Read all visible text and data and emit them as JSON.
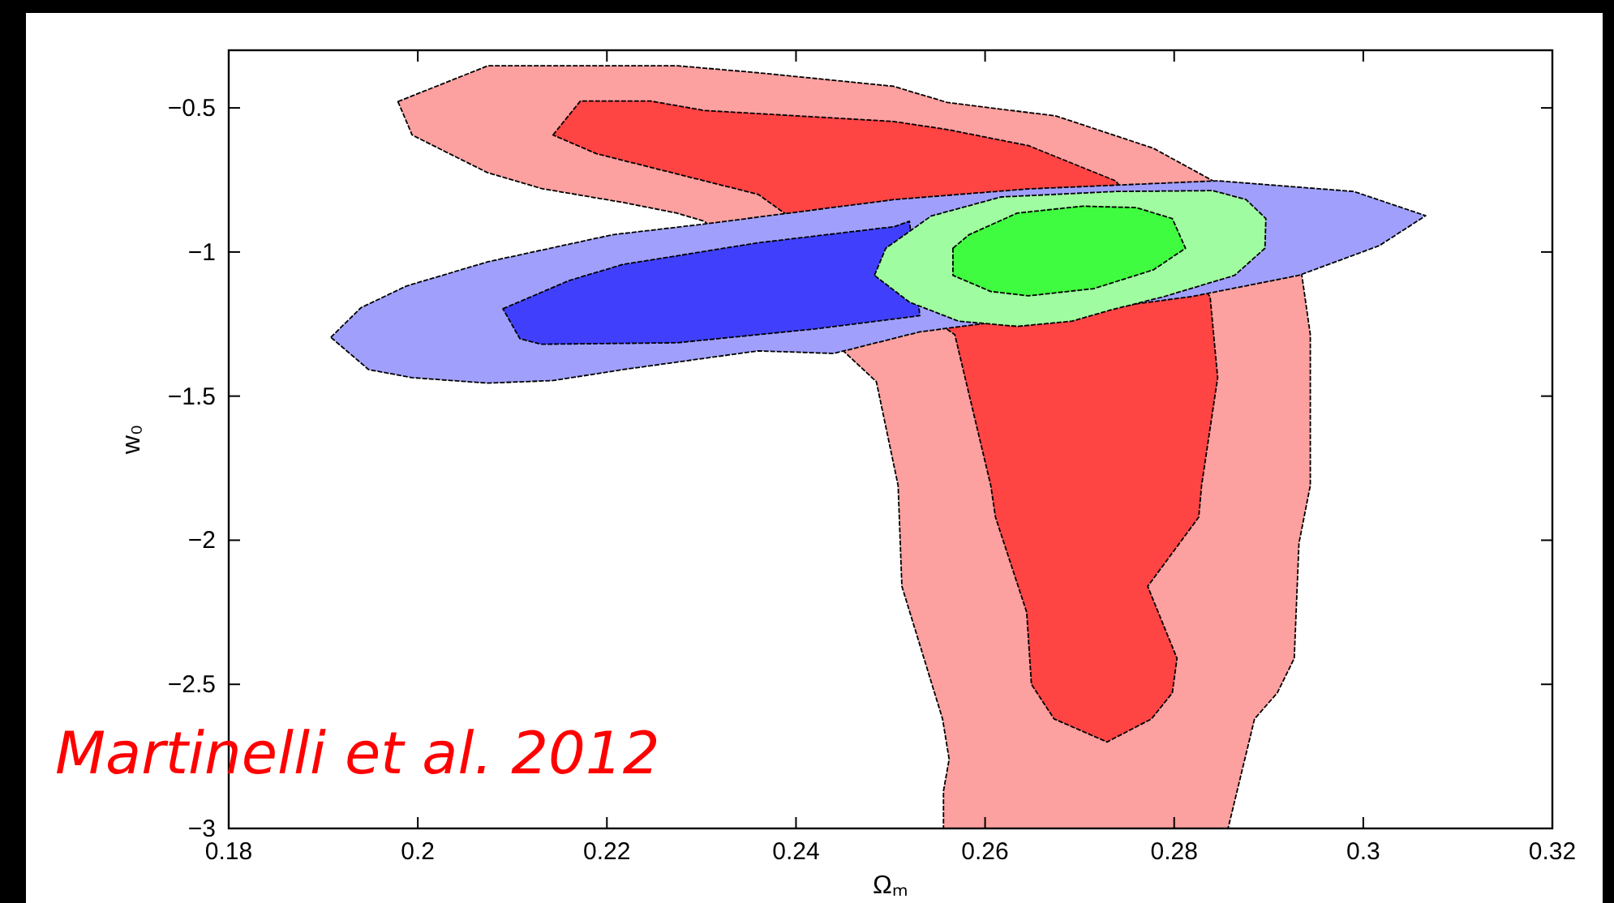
{
  "chart_data": {
    "type": "area",
    "xlabel": "Ωₘ",
    "ylabel": "w₀",
    "xlim": [
      0.18,
      0.32
    ],
    "ylim": [
      -3,
      -0.3
    ],
    "xticks": [
      0.18,
      0.2,
      0.22,
      0.24,
      0.26,
      0.28,
      0.3,
      0.32
    ],
    "yticks": [
      -3,
      -2.5,
      -2,
      -1.5,
      -1,
      -0.5
    ],
    "grid": false,
    "annotations": [
      "Martinelli et al. 2012"
    ],
    "series": [
      {
        "color": "#fca0a0",
        "x": [
          0.1979,
          0.2074,
          0.2275,
          0.236,
          0.2503,
          0.256,
          0.2675,
          0.2778,
          0.2841,
          0.2935,
          0.2944,
          0.2944,
          0.2932,
          0.2927,
          0.2909,
          0.2885,
          0.2857,
          0.2556,
          0.2556,
          0.2562,
          0.2555,
          0.2512,
          0.2508,
          0.2485,
          0.2303,
          0.2274,
          0.2217,
          0.2131,
          0.2074,
          0.2028,
          0.1994
        ],
        "values": [
          -0.478,
          -0.354,
          -0.354,
          -0.378,
          -0.425,
          -0.481,
          -0.528,
          -0.64,
          -0.753,
          -1.08,
          -1.287,
          -1.81,
          -2.01,
          -2.41,
          -2.53,
          -2.62,
          -3,
          -3,
          -2.87,
          -2.76,
          -2.62,
          -2.16,
          -1.81,
          -1.45,
          -0.893,
          -0.865,
          -0.828,
          -0.78,
          -0.725,
          -0.65,
          -0.594
        ]
      },
      {
        "color": "#ff4444",
        "x": [
          0.2143,
          0.2172,
          0.2246,
          0.2303,
          0.2503,
          0.256,
          0.2646,
          0.2738,
          0.2838,
          0.2846,
          0.2829,
          0.2826,
          0.2772,
          0.2803,
          0.2798,
          0.2776,
          0.2729,
          0.2673,
          0.2649,
          0.2644,
          0.2611,
          0.2606,
          0.2568,
          0.236,
          0.2303,
          0.2189
        ],
        "values": [
          -0.594,
          -0.476,
          -0.476,
          -0.509,
          -0.547,
          -0.575,
          -0.631,
          -0.753,
          -1.155,
          -1.436,
          -1.81,
          -1.92,
          -2.16,
          -2.41,
          -2.53,
          -2.62,
          -2.7,
          -2.62,
          -2.5,
          -2.25,
          -1.92,
          -1.81,
          -1.287,
          -0.8,
          -0.753,
          -0.659
        ]
      },
      {
        "color": "#a0a0fc",
        "x": [
          0.1908,
          0.194,
          0.1988,
          0.2074,
          0.2206,
          0.2303,
          0.2504,
          0.2646,
          0.2846,
          0.299,
          0.3066,
          0.3017,
          0.2932,
          0.2818,
          0.2531,
          0.244,
          0.236,
          0.2217,
          0.2143,
          0.2074,
          0.1994,
          0.1948
        ],
        "values": [
          -1.296,
          -1.193,
          -1.118,
          -1.034,
          -0.94,
          -0.903,
          -0.818,
          -0.781,
          -0.753,
          -0.79,
          -0.874,
          -0.978,
          -1.081,
          -1.155,
          -1.277,
          -1.352,
          -1.343,
          -1.408,
          -1.446,
          -1.455,
          -1.436,
          -1.408
        ]
      },
      {
        "color": "#4040fc",
        "x": [
          0.209,
          0.216,
          0.2217,
          0.236,
          0.2504,
          0.252,
          0.2531,
          0.2417,
          0.2274,
          0.2131,
          0.2108
        ],
        "values": [
          -1.197,
          -1.099,
          -1.043,
          -0.968,
          -0.912,
          -0.893,
          -1.221,
          -1.268,
          -1.315,
          -1.32,
          -1.301
        ]
      },
      {
        "color": "#a0fca0",
        "x": [
          0.2483,
          0.2495,
          0.2543,
          0.2617,
          0.2738,
          0.2841,
          0.2876,
          0.2897,
          0.2896,
          0.2864,
          0.2789,
          0.2732,
          0.2692,
          0.2634,
          0.2572,
          0.252
        ],
        "values": [
          -1.081,
          -0.987,
          -0.875,
          -0.809,
          -0.79,
          -0.787,
          -0.818,
          -0.884,
          -0.987,
          -1.081,
          -1.155,
          -1.202,
          -1.24,
          -1.258,
          -1.24,
          -1.174
        ]
      },
      {
        "color": "#40fc40",
        "x": [
          0.2566,
          0.2583,
          0.2634,
          0.2703,
          0.276,
          0.2798,
          0.2812,
          0.2778,
          0.2715,
          0.2646,
          0.2606,
          0.2566
        ],
        "values": [
          -0.987,
          -0.94,
          -0.865,
          -0.841,
          -0.846,
          -0.884,
          -0.987,
          -1.062,
          -1.127,
          -1.152,
          -1.137,
          -1.081
        ]
      }
    ]
  }
}
